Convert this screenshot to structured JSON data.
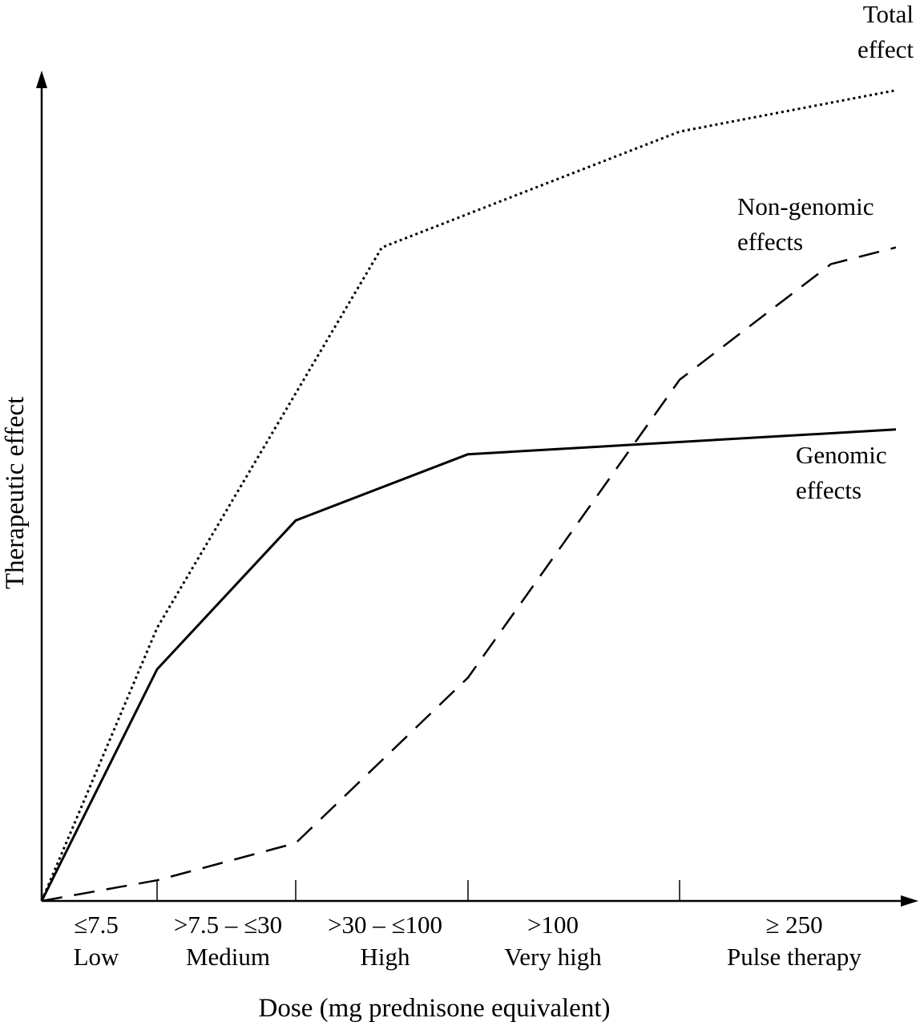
{
  "chart_data": {
    "type": "line",
    "xlabel": "Dose (mg prednisone equivalent)",
    "ylabel": "Therapeutic effect",
    "categories": [
      {
        "range": "≤7.5",
        "name": "Low"
      },
      {
        "range": ">7.5 – ≤30",
        "name": "Medium"
      },
      {
        "range": ">30 – ≤100",
        "name": "High"
      },
      {
        "range": ">100",
        "name": "Very high"
      },
      {
        "range": "≥ 250",
        "name": "Pulse therapy"
      }
    ],
    "x_boundaries": [
      0,
      1,
      2,
      3,
      4,
      5
    ],
    "xlim": [
      0,
      5
    ],
    "ylim": [
      0,
      100
    ],
    "grid": false,
    "series": [
      {
        "name": "Total effect",
        "label_lines": [
          "Total",
          "effect"
        ],
        "style": "dotted",
        "x": [
          0,
          1,
          2.5,
          4.0,
          5.0
        ],
        "y": [
          0,
          33,
          79,
          93,
          98
        ]
      },
      {
        "name": "Non-genomic effects",
        "label_lines": [
          "Non-genomic",
          "effects"
        ],
        "style": "dashed",
        "x": [
          0,
          1,
          2,
          3,
          4.0,
          4.7,
          5.0
        ],
        "y": [
          0,
          2.5,
          7,
          27,
          63,
          77,
          79
        ]
      },
      {
        "name": "Genomic effects",
        "label_lines": [
          "Genomic",
          "effects"
        ],
        "style": "solid",
        "x": [
          0,
          1,
          2,
          3,
          5.0
        ],
        "y": [
          0,
          28,
          46,
          54,
          57
        ]
      }
    ]
  }
}
